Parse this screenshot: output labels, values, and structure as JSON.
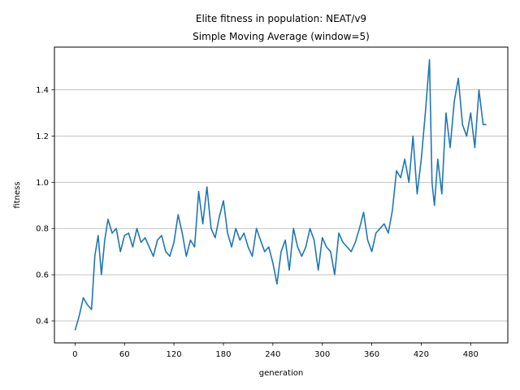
{
  "chart_data": {
    "type": "line",
    "title": "Elite fitness in population: NEAT/v9",
    "subtitle": "Simple Moving Average (window=5)",
    "xlabel": "generation",
    "ylabel": "fitness",
    "xlim": [
      -25,
      525
    ],
    "ylim": [
      0.305,
      1.585
    ],
    "xticks": [
      0,
      60,
      120,
      180,
      240,
      300,
      360,
      420,
      480
    ],
    "yticks": [
      0.4,
      0.6,
      0.8,
      1.0,
      1.2,
      1.4
    ],
    "ytick_labels": [
      "0.4",
      "0.6",
      "0.8",
      "1.0",
      "1.2",
      "1.4"
    ],
    "grid": "horizontal",
    "line_color": "#1f77b4",
    "series": [
      {
        "x": [
          0,
          5,
          10,
          15,
          20,
          24,
          28,
          32,
          36,
          40,
          45,
          50,
          55,
          60,
          65,
          70,
          75,
          80,
          85,
          90,
          95,
          100,
          105,
          110,
          115,
          120,
          125,
          130,
          135,
          140,
          145,
          150,
          155,
          160,
          165,
          170,
          175,
          180,
          185,
          190,
          195,
          200,
          205,
          210,
          215,
          220,
          225,
          230,
          235,
          240,
          245,
          250,
          255,
          260,
          265,
          270,
          275,
          280,
          285,
          290,
          295,
          300,
          305,
          310,
          315,
          320,
          325,
          330,
          335,
          340,
          345,
          350,
          355,
          360,
          365,
          370,
          375,
          380,
          385,
          390,
          395,
          400,
          405,
          410,
          415,
          420,
          425,
          430,
          433,
          436,
          440,
          445,
          450,
          455,
          460,
          465,
          470,
          475,
          480,
          485,
          490,
          495,
          499
        ],
        "values": [
          0.36,
          0.42,
          0.5,
          0.47,
          0.45,
          0.68,
          0.77,
          0.6,
          0.75,
          0.84,
          0.78,
          0.8,
          0.7,
          0.77,
          0.78,
          0.72,
          0.8,
          0.74,
          0.76,
          0.72,
          0.68,
          0.75,
          0.77,
          0.7,
          0.68,
          0.74,
          0.86,
          0.78,
          0.68,
          0.75,
          0.72,
          0.96,
          0.82,
          0.98,
          0.8,
          0.76,
          0.85,
          0.92,
          0.78,
          0.72,
          0.8,
          0.75,
          0.78,
          0.72,
          0.68,
          0.8,
          0.75,
          0.7,
          0.72,
          0.65,
          0.56,
          0.7,
          0.75,
          0.62,
          0.8,
          0.72,
          0.68,
          0.72,
          0.8,
          0.75,
          0.62,
          0.76,
          0.72,
          0.7,
          0.6,
          0.78,
          0.74,
          0.72,
          0.7,
          0.74,
          0.8,
          0.87,
          0.75,
          0.7,
          0.78,
          0.8,
          0.82,
          0.78,
          0.88,
          1.05,
          1.02,
          1.1,
          1.0,
          1.2,
          0.95,
          1.1,
          1.3,
          1.53,
          1.0,
          0.9,
          1.1,
          0.95,
          1.3,
          1.15,
          1.35,
          1.45,
          1.25,
          1.2,
          1.3,
          1.15,
          1.4,
          1.25,
          1.25
        ]
      }
    ]
  }
}
